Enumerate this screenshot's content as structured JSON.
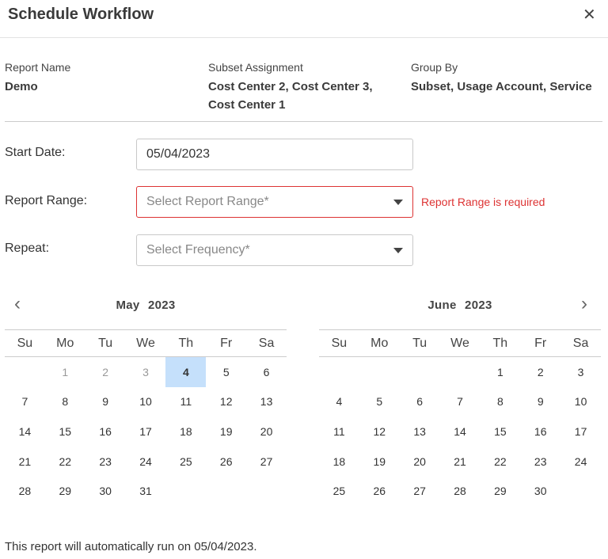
{
  "dialog": {
    "title": "Schedule Workflow",
    "close_icon": "close-icon"
  },
  "summary": {
    "report_name_label": "Report Name",
    "report_name": "Demo",
    "subset_label": "Subset Assignment",
    "subset_line1": "Cost Center 2, Cost Center 3,",
    "subset_line2": "Cost Center 1",
    "group_label": "Group By",
    "group_value": "Subset, Usage Account, Service"
  },
  "form": {
    "start_date_label": "Start Date:",
    "start_date": "05/04/2023",
    "range_label": "Report Range:",
    "range_placeholder": "Select Report Range*",
    "range_error": "Report Range is required",
    "repeat_label": "Repeat:",
    "repeat_placeholder": "Select Frequency*",
    "error_color": "#dd3333"
  },
  "calendar": {
    "weekdays": [
      "Su",
      "Mo",
      "Tu",
      "We",
      "Th",
      "Fr",
      "Sa"
    ],
    "selected_color": "#c5e0fb",
    "months": [
      {
        "title": "May  2023",
        "start_weekday": 1,
        "days": 31,
        "disabled": [
          1,
          2,
          3
        ],
        "selected": 4
      },
      {
        "title": "June  2023",
        "start_weekday": 4,
        "days": 30,
        "disabled": [],
        "selected": null
      }
    ]
  },
  "footer": {
    "message": "This report will automatically run on 05/04/2023."
  }
}
